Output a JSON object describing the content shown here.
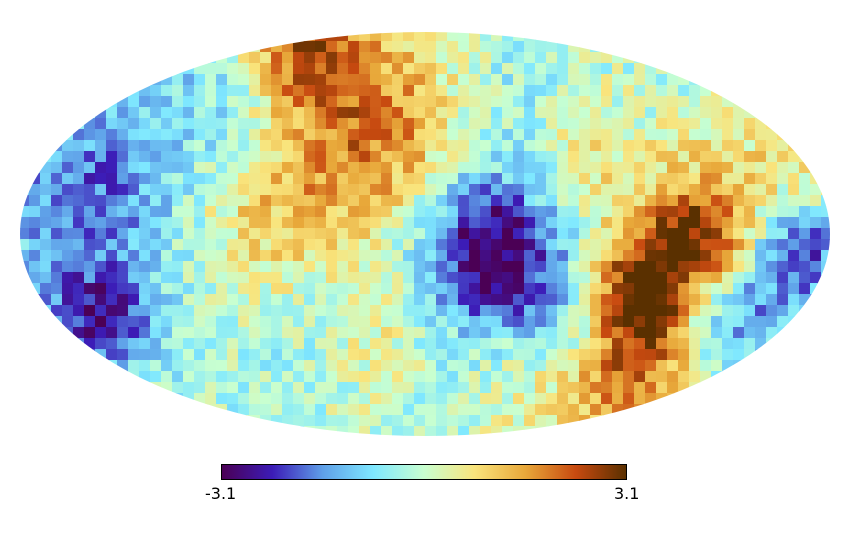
{
  "map": {
    "projection": "mollweide",
    "field": "random-gaussian-pixelized"
  },
  "colorbar": {
    "min_label": "-3.1",
    "max_label": "3.1",
    "min": -3.1,
    "max": 3.1,
    "stops": [
      "#4b0055",
      "#3c1cb7",
      "#5fa0e8",
      "#7fe8ff",
      "#c8ffd0",
      "#f9e47c",
      "#e8a83a",
      "#c84a10",
      "#5a3000"
    ]
  }
}
